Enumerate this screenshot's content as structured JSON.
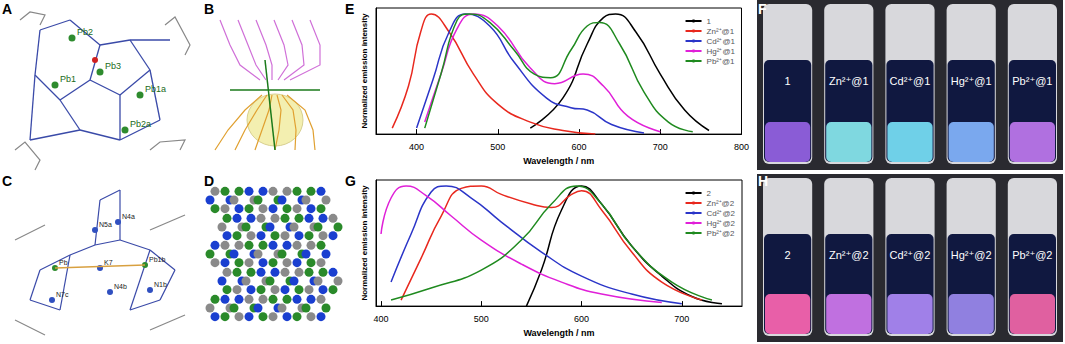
{
  "panel_labels": [
    "A",
    "B",
    "C",
    "D",
    "E",
    "F",
    "G",
    "H"
  ],
  "structures": {
    "A": {
      "atom_labels": [
        "Pb2",
        "Pb3",
        "Pb1",
        "Pb1a",
        "Pb2a"
      ]
    },
    "C": {
      "atom_labels": [
        "Pb",
        "N7c",
        "N5a",
        "N4a",
        "K7",
        "Pb1b",
        "N4b",
        "N1b"
      ]
    }
  },
  "chart_data": [
    {
      "type": "line",
      "x_label": "Wavelength / nm",
      "y_label": "Normalized emission intensity",
      "xlim": [
        350,
        800
      ],
      "xticks": [
        400,
        500,
        600,
        700,
        800
      ],
      "ylim": [
        0,
        1.05
      ],
      "yticks": [],
      "tick_labels": "x",
      "grid": false,
      "legend": "upper right",
      "series": [
        {
          "name": "1",
          "color": "#000000",
          "x": [
            540,
            580,
            610,
            630,
            645,
            670,
            700,
            730,
            760
          ],
          "values": [
            0.05,
            0.3,
            0.75,
            0.97,
            1.0,
            0.85,
            0.5,
            0.2,
            0.03
          ]
        },
        {
          "name": "Zn²⁺@1",
          "color": "#e8281e",
          "x": [
            370,
            390,
            405,
            418,
            440,
            470,
            500,
            540,
            580,
            620
          ],
          "values": [
            0.05,
            0.4,
            0.85,
            1.0,
            0.85,
            0.5,
            0.25,
            0.1,
            0.03,
            0.0
          ]
        },
        {
          "name": "Cd²⁺@1",
          "color": "#2b35c8",
          "x": [
            400,
            420,
            440,
            460,
            490,
            520,
            560,
            590,
            610,
            640,
            680
          ],
          "values": [
            0.05,
            0.45,
            0.85,
            1.0,
            0.9,
            0.6,
            0.3,
            0.22,
            0.2,
            0.08,
            0.01
          ]
        },
        {
          "name": "Hg²⁺@1",
          "color": "#e020d8",
          "x": [
            410,
            430,
            450,
            470,
            500,
            540,
            570,
            605,
            630,
            660,
            700
          ],
          "values": [
            0.1,
            0.5,
            0.88,
            1.0,
            0.9,
            0.55,
            0.42,
            0.5,
            0.4,
            0.15,
            0.02
          ]
        },
        {
          "name": "Pb²⁺@1",
          "color": "#1f8a1f",
          "x": [
            410,
            430,
            450,
            465,
            490,
            520,
            545,
            565,
            590,
            610,
            625,
            650,
            680,
            710,
            740
          ],
          "values": [
            0.05,
            0.5,
            0.95,
            1.0,
            0.93,
            0.7,
            0.5,
            0.47,
            0.7,
            0.9,
            0.93,
            0.75,
            0.35,
            0.1,
            0.02
          ]
        }
      ]
    },
    {
      "type": "line",
      "x_label": "Wavelength / nm",
      "y_label": "Normalized emission intensity",
      "xlim": [
        395,
        760
      ],
      "xticks": [
        400,
        500,
        600,
        700
      ],
      "ylim": [
        0,
        1.05
      ],
      "yticks": [],
      "tick_labels": "x",
      "grid": false,
      "legend": "upper right",
      "series": [
        {
          "name": "2",
          "color": "#000000",
          "x": [
            545,
            560,
            580,
            600,
            620,
            650,
            680,
            710,
            740
          ],
          "values": [
            0.0,
            0.3,
            0.8,
            1.0,
            0.85,
            0.5,
            0.25,
            0.08,
            0.02
          ]
        },
        {
          "name": "Zn²⁺@2",
          "color": "#e8281e",
          "x": [
            420,
            440,
            460,
            480,
            500,
            520,
            550,
            570,
            590,
            600,
            620,
            650,
            680,
            720
          ],
          "values": [
            0.05,
            0.4,
            0.75,
            0.98,
            1.0,
            0.93,
            0.85,
            0.82,
            0.93,
            0.96,
            0.8,
            0.45,
            0.2,
            0.05
          ]
        },
        {
          "name": "Cd²⁺@2",
          "color": "#2b35c8",
          "x": [
            410,
            430,
            450,
            465,
            490,
            520,
            560,
            600,
            650,
            700
          ],
          "values": [
            0.2,
            0.6,
            0.95,
            1.0,
            0.9,
            0.7,
            0.45,
            0.25,
            0.1,
            0.02
          ]
        },
        {
          "name": "Hg²⁺@2",
          "color": "#e020d8",
          "x": [
            400,
            410,
            425,
            445,
            470,
            500,
            540,
            580,
            620,
            680
          ],
          "values": [
            0.6,
            0.9,
            1.0,
            0.92,
            0.75,
            0.55,
            0.35,
            0.2,
            0.1,
            0.03
          ]
        },
        {
          "name": "Pb²⁺@2",
          "color": "#1f8a1f",
          "x": [
            410,
            450,
            500,
            540,
            570,
            595,
            620,
            650,
            690,
            730
          ],
          "values": [
            0.05,
            0.15,
            0.3,
            0.55,
            0.85,
            1.0,
            0.85,
            0.5,
            0.2,
            0.05
          ]
        }
      ]
    }
  ],
  "photos": {
    "F": {
      "vials": [
        {
          "label": "1",
          "color": "#8a5cd6"
        },
        {
          "label": "Zn²⁺@1",
          "color": "#7fd8e0"
        },
        {
          "label": "Cd²⁺@1",
          "color": "#6fd0e8"
        },
        {
          "label": "Hg²⁺@1",
          "color": "#7aa8ee"
        },
        {
          "label": "Pb²⁺@1",
          "color": "#b070e0"
        }
      ]
    },
    "H": {
      "vials": [
        {
          "label": "2",
          "color": "#e85fa8"
        },
        {
          "label": "Zn²⁺@2",
          "color": "#c070e0"
        },
        {
          "label": "Cd²⁺@2",
          "color": "#a080e8"
        },
        {
          "label": "Hg²⁺@2",
          "color": "#9080e0"
        },
        {
          "label": "Pb²⁺@2",
          "color": "#e060a0"
        }
      ]
    }
  }
}
